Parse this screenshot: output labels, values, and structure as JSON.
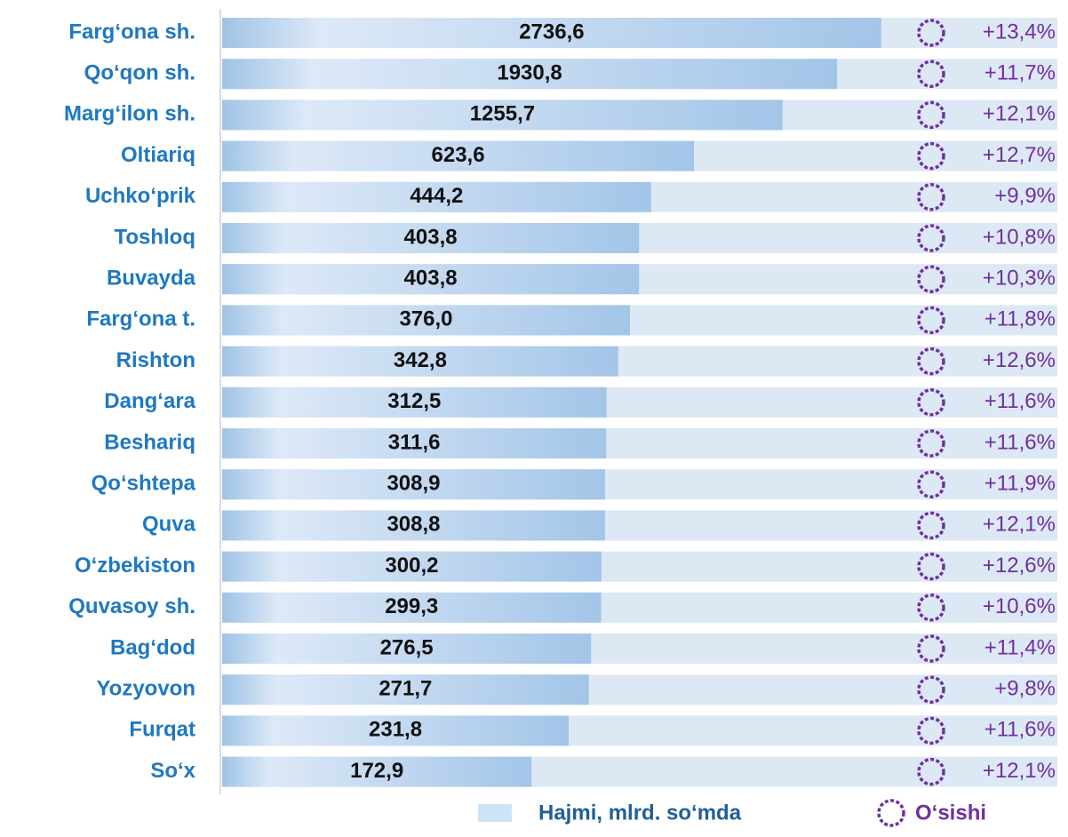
{
  "chart_data": {
    "type": "bar",
    "orientation": "horizontal",
    "log_scale": true,
    "xlim": [
      15,
      11000
    ],
    "categories": [
      "Farg‘ona sh.",
      "Qo‘qon sh.",
      "Marg‘ilon sh.",
      "Oltiariq",
      "Uchko‘prik",
      "Toshloq",
      "Buvayda",
      "Farg‘ona t.",
      "Rishton",
      "Dang‘ara",
      "Beshariq",
      "Qo‘shtepa",
      "Quva",
      "O‘zbekiston",
      "Quvasoy sh.",
      "Bag‘dod",
      "Yozyovon",
      "Furqat",
      "So‘x"
    ],
    "series": [
      {
        "name": "Hajmi, mlrd. so‘mda",
        "color": "#9dc3e6",
        "values": [
          2736.6,
          1930.8,
          1255.7,
          623.6,
          444.2,
          403.8,
          403.8,
          376.0,
          342.8,
          312.5,
          311.6,
          308.9,
          308.8,
          300.2,
          299.3,
          276.5,
          271.7,
          231.8,
          172.9
        ],
        "value_labels": [
          "2736,6",
          "1930,8",
          "1255,7",
          "623,6",
          "444,2",
          "403,8",
          "403,8",
          "376,0",
          "342,8",
          "312,5",
          "311,6",
          "308,9",
          "308,8",
          "300,2",
          "299,3",
          "276,5",
          "271,7",
          "231,8",
          "172,9"
        ]
      },
      {
        "name": "O‘sishi",
        "color": "#7030a0",
        "values": [
          13.4,
          11.7,
          12.1,
          12.7,
          9.9,
          10.8,
          10.3,
          11.8,
          12.6,
          11.6,
          11.6,
          11.9,
          12.1,
          12.6,
          10.6,
          11.4,
          9.8,
          11.6,
          12.1
        ],
        "value_labels": [
          "+13,4%",
          "+11,7%",
          "+12,1%",
          "+12,7%",
          "+9,9%",
          "+10,8%",
          "+10,3%",
          "+11,8%",
          "+12,6%",
          "+11,6%",
          "+11,6%",
          "+11,9%",
          "+12,1%",
          "+12,6%",
          "+10,6%",
          "+11,4%",
          "+9,8%",
          "+11,6%",
          "+12,1%"
        ]
      }
    ]
  }
}
